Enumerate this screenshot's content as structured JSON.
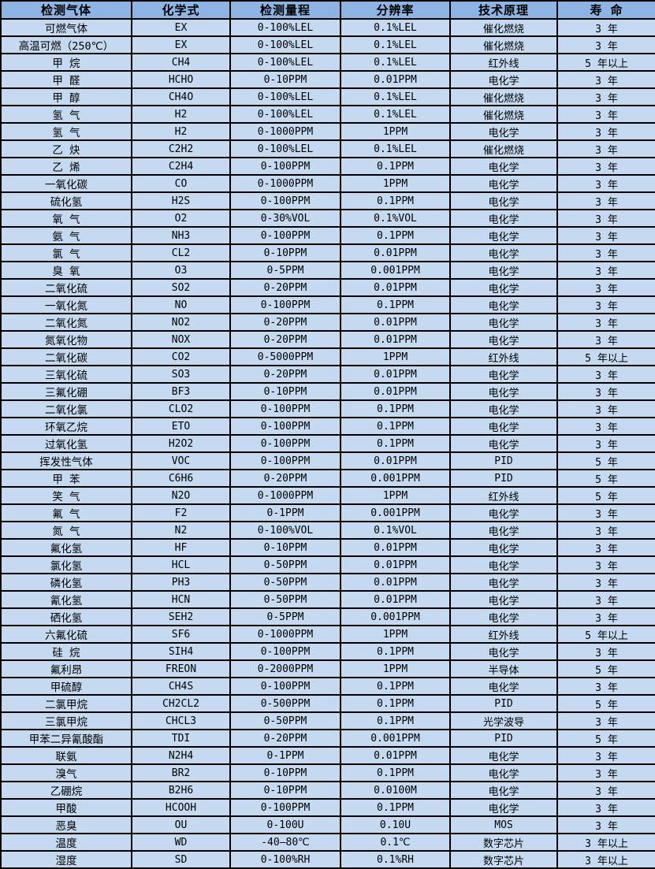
{
  "colors": {
    "header_bg": "#8DB4E2",
    "row_bg": "#C5D9F1",
    "border": "#000000",
    "text": "#000000"
  },
  "table": {
    "headers": [
      "检测气体",
      "化学式",
      "检测量程",
      "分辨率",
      "技术原理",
      "寿 命"
    ],
    "rows": [
      [
        "可燃气体",
        "EX",
        "0-100%LEL",
        "0.1%LEL",
        "催化燃烧",
        "3 年"
      ],
      [
        "高温可燃（250℃）",
        "EX",
        "0-100%LEL",
        "0.1%LEL",
        "催化燃烧",
        "3 年"
      ],
      [
        "甲 烷",
        "CH4",
        "0-100%LEL",
        "0.1%LEL",
        "红外线",
        "5 年以上"
      ],
      [
        "甲 醛",
        "HCHO",
        "0-10PPM",
        "0.01PPM",
        "电化学",
        "3 年"
      ],
      [
        "甲 醇",
        "CH4O",
        "0-100%LEL",
        "0.1%LEL",
        "催化燃烧",
        "3 年"
      ],
      [
        "氢 气",
        "H2",
        "0-100%LEL",
        "0.1%LEL",
        "催化燃烧",
        "3 年"
      ],
      [
        "氢 气",
        "H2",
        "0-1000PPM",
        "1PPM",
        "电化学",
        "3 年"
      ],
      [
        "乙 炔",
        "C2H2",
        "0-100%LEL",
        "0.1%LEL",
        "催化燃烧",
        "3 年"
      ],
      [
        "乙 烯",
        "C2H4",
        "0-100PPM",
        "0.1PPM",
        "电化学",
        "3 年"
      ],
      [
        "一氧化碳",
        "CO",
        "0-1000PPM",
        "1PPM",
        "电化学",
        "3 年"
      ],
      [
        "硫化氢",
        "H2S",
        "0-100PPM",
        "0.1PPM",
        "电化学",
        "3 年"
      ],
      [
        "氧 气",
        "O2",
        "0-30%VOL",
        "0.1%VOL",
        "电化学",
        "3 年"
      ],
      [
        "氨 气",
        "NH3",
        "0-100PPM",
        "0.1PPM",
        "电化学",
        "3 年"
      ],
      [
        "氯 气",
        "CL2",
        "0-10PPM",
        "0.01PPM",
        "电化学",
        "3 年"
      ],
      [
        "臭 氧",
        "O3",
        "0-5PPM",
        "0.001PPM",
        "电化学",
        "3 年"
      ],
      [
        "二氧化硫",
        "SO2",
        "0-20PPM",
        "0.01PPM",
        "电化学",
        "3 年"
      ],
      [
        "一氧化氮",
        "NO",
        "0-100PPM",
        "0.1PPM",
        "电化学",
        "3 年"
      ],
      [
        "二氧化氮",
        "NO2",
        "0-20PPM",
        "0.01PPM",
        "电化学",
        "3 年"
      ],
      [
        "氮氧化物",
        "NOX",
        "0-20PPM",
        "0.01PPM",
        "电化学",
        "3 年"
      ],
      [
        "二氧化碳",
        "CO2",
        "0-5000PPM",
        "1PPM",
        "红外线",
        "5 年以上"
      ],
      [
        "三氧化硫",
        "SO3",
        "0-20PPM",
        "0.01PPM",
        "电化学",
        "3 年"
      ],
      [
        "三氟化硼",
        "BF3",
        "0-10PPM",
        "0.01PPM",
        "电化学",
        "3 年"
      ],
      [
        "二氧化氯",
        "CLO2",
        "0-100PPM",
        "0.1PPM",
        "电化学",
        "3 年"
      ],
      [
        "环氧乙烷",
        "ETO",
        "0-100PPM",
        "0.1PPM",
        "电化学",
        "3 年"
      ],
      [
        "过氧化氢",
        "H2O2",
        "0-100PPM",
        "0.1PPM",
        "电化学",
        "3 年"
      ],
      [
        "挥发性气体",
        "VOC",
        "0-100PPM",
        "0.01PPM",
        "PID",
        "5 年"
      ],
      [
        "甲 苯",
        "C6H6",
        "0-20PPM",
        "0.001PPM",
        "PID",
        "5 年"
      ],
      [
        "笑 气",
        "N2O",
        "0-1000PPM",
        "1PPM",
        "红外线",
        "5 年"
      ],
      [
        "氟 气",
        "F2",
        "0-1PPM",
        "0.001PPM",
        "电化学",
        "3 年"
      ],
      [
        "氮 气",
        "N2",
        "0-100%VOL",
        "0.1%VOL",
        "电化学",
        "3 年"
      ],
      [
        "氟化氢",
        "HF",
        "0-10PPM",
        "0.01PPM",
        "电化学",
        "3 年"
      ],
      [
        "氯化氢",
        "HCL",
        "0-50PPM",
        "0.01PPM",
        "电化学",
        "3 年"
      ],
      [
        "磷化氢",
        "PH3",
        "0-50PPM",
        "0.01PPM",
        "电化学",
        "3 年"
      ],
      [
        "氰化氢",
        "HCN",
        "0-50PPM",
        "0.01PPM",
        "电化学",
        "3 年"
      ],
      [
        "硒化氢",
        "SEH2",
        "0-5PPM",
        "0.001PPM",
        "电化学",
        "3 年"
      ],
      [
        "六氟化硫",
        "SF6",
        "0-1000PPM",
        "1PPM",
        "红外线",
        "5 年以上"
      ],
      [
        "硅 烷",
        "SIH4",
        "0-100PPM",
        "0.1PPM",
        "电化学",
        "3 年"
      ],
      [
        "氟利昂",
        "FREON",
        "0-2000PPM",
        "1PPM",
        "半导体",
        "5 年"
      ],
      [
        "甲硫醇",
        "CH4S",
        "0-100PPM",
        "0.1PPM",
        "电化学",
        "3 年"
      ],
      [
        "二氯甲烷",
        "CH2CL2",
        "0-500PPM",
        "0.1PPM",
        "PID",
        "5 年"
      ],
      [
        "三氯甲烷",
        "CHCL3",
        "0-50PPM",
        "0.1PPM",
        "光学波导",
        "3 年"
      ],
      [
        "甲苯二异氰酸酯",
        "TDI",
        "0-20PPM",
        "0.001PPM",
        "PID",
        "5 年"
      ],
      [
        "联氨",
        "N2H4",
        "0-1PPM",
        "0.01PPM",
        "电化学",
        "3 年"
      ],
      [
        "溴气",
        "BR2",
        "0-10PPM",
        "0.1PPM",
        "电化学",
        "3 年"
      ],
      [
        "乙硼烷",
        "B2H6",
        "0-10PPM",
        "0.0100M",
        "电化学",
        "3 年"
      ],
      [
        "甲酸",
        "HCOOH",
        "0-100PPM",
        "0.1PPM",
        "电化学",
        "3 年"
      ],
      [
        "恶臭",
        "OU",
        "0-100U",
        "0.10U",
        "MOS",
        "3 年"
      ],
      [
        "温度",
        "WD",
        "-40—80℃",
        "0.1℃",
        "数字芯片",
        "3 年以上"
      ],
      [
        "湿度",
        "SD",
        "0-100%RH",
        "0.1%RH",
        "数字芯片",
        "3 年以上"
      ]
    ]
  }
}
